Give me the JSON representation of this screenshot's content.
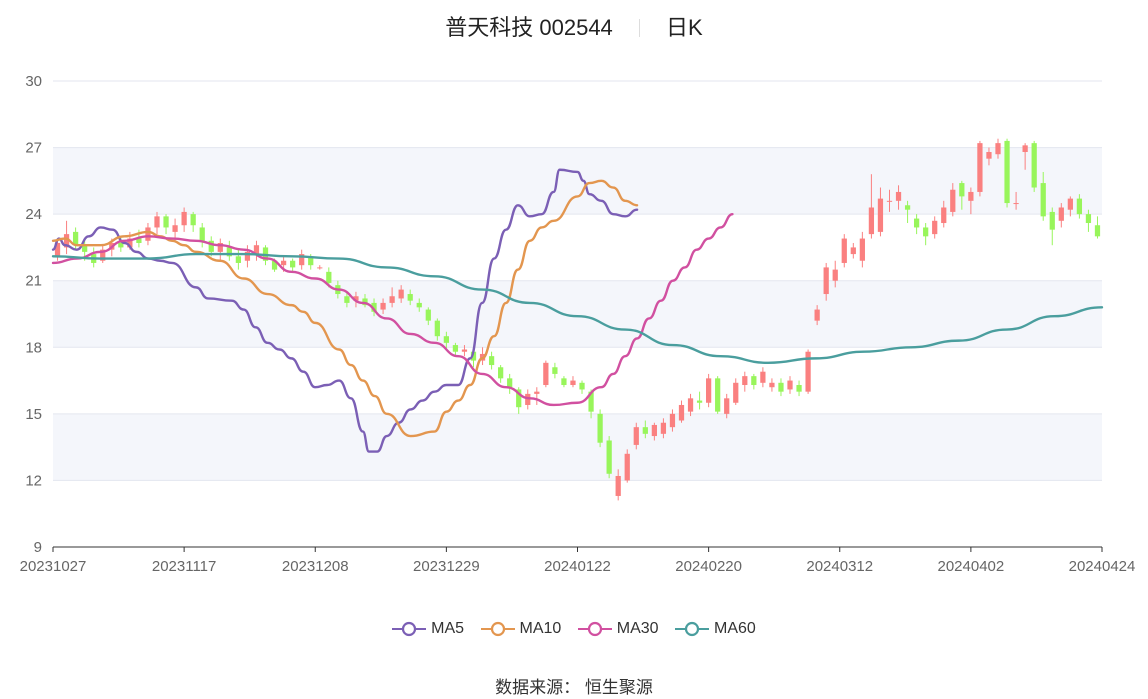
{
  "header": {
    "title": "普天科技 002544",
    "period": "日K"
  },
  "footer": {
    "source_label": "数据来源：",
    "source_name": "恒生聚源"
  },
  "colors": {
    "up": "#fa8080",
    "down": "#98f55b",
    "MA5": "#7b5fb5",
    "MA10": "#e3964f",
    "MA30": "#d150a0",
    "MA60": "#4a9e9e",
    "grid_band": "#f4f6fb",
    "grid_line": "#e3e6ef",
    "axis": "#666666"
  },
  "chart_data": {
    "type": "candlestick",
    "ylim": [
      9,
      30
    ],
    "yticks": [
      9,
      12,
      15,
      18,
      21,
      24,
      27,
      30
    ],
    "xlabels": [
      "20231027",
      "20231117",
      "20231208",
      "20231229",
      "20240122",
      "20240220",
      "20240312",
      "20240402",
      "20240424"
    ],
    "candles": [
      [
        22.1,
        22.7,
        22.9,
        21.9
      ],
      [
        22.5,
        23.1,
        23.7,
        22.2
      ],
      [
        23.2,
        22.6,
        23.4,
        22.4
      ],
      [
        22.6,
        22.3,
        22.8,
        21.9
      ],
      [
        22.2,
        21.8,
        22.5,
        21.6
      ],
      [
        21.9,
        22.4,
        22.6,
        21.8
      ],
      [
        22.4,
        22.7,
        22.9,
        22.1
      ],
      [
        22.7,
        22.5,
        23.0,
        22.3
      ],
      [
        22.5,
        22.9,
        23.2,
        22.4
      ],
      [
        22.9,
        22.7,
        23.3,
        22.5
      ],
      [
        22.8,
        23.4,
        23.6,
        22.6
      ],
      [
        23.4,
        23.9,
        24.1,
        23.1
      ],
      [
        23.9,
        23.4,
        24.0,
        23.1
      ],
      [
        23.2,
        23.5,
        23.8,
        22.8
      ],
      [
        23.5,
        24.1,
        24.3,
        23.2
      ],
      [
        24.0,
        23.5,
        24.1,
        23.2
      ],
      [
        23.4,
        22.8,
        23.6,
        22.5
      ],
      [
        22.8,
        22.3,
        23.0,
        22.1
      ],
      [
        22.3,
        22.7,
        22.9,
        21.9
      ],
      [
        22.5,
        22.1,
        22.8,
        21.9
      ],
      [
        22.1,
        21.8,
        22.4,
        21.5
      ],
      [
        21.9,
        22.3,
        22.6,
        21.6
      ],
      [
        22.2,
        22.6,
        22.8,
        21.9
      ],
      [
        22.5,
        21.9,
        22.6,
        21.7
      ],
      [
        21.9,
        21.5,
        22.0,
        21.4
      ],
      [
        21.7,
        21.9,
        22.1,
        21.4
      ],
      [
        21.9,
        21.6,
        22.0,
        21.4
      ],
      [
        21.7,
        22.2,
        22.4,
        21.5
      ],
      [
        22.1,
        21.7,
        22.2,
        21.5
      ],
      [
        21.6,
        21.6,
        21.7,
        21.5
      ],
      [
        21.4,
        20.9,
        21.6,
        20.7
      ],
      [
        20.8,
        20.4,
        21.0,
        20.2
      ],
      [
        20.3,
        20.0,
        20.5,
        19.8
      ],
      [
        20.1,
        20.3,
        20.5,
        19.8
      ],
      [
        20.2,
        19.9,
        20.4,
        19.8
      ],
      [
        20.0,
        19.6,
        20.2,
        19.4
      ],
      [
        19.7,
        20.0,
        20.2,
        19.5
      ],
      [
        20.0,
        20.3,
        20.7,
        19.8
      ],
      [
        20.2,
        20.6,
        20.8,
        20.0
      ],
      [
        20.4,
        20.1,
        20.6,
        19.9
      ],
      [
        20.0,
        19.8,
        20.2,
        19.6
      ],
      [
        19.7,
        19.2,
        19.8,
        19.0
      ],
      [
        19.2,
        18.5,
        19.3,
        18.3
      ],
      [
        18.5,
        18.2,
        18.7,
        17.9
      ],
      [
        18.1,
        17.8,
        18.2,
        17.6
      ],
      [
        17.8,
        17.9,
        18.1,
        17.6
      ],
      [
        17.8,
        17.4,
        17.9,
        17.1
      ],
      [
        17.4,
        17.7,
        18.0,
        17.2
      ],
      [
        17.6,
        17.2,
        17.8,
        17.0
      ],
      [
        17.1,
        16.6,
        17.2,
        16.4
      ],
      [
        16.6,
        16.2,
        16.8,
        15.9
      ],
      [
        16.1,
        15.3,
        16.2,
        15.0
      ],
      [
        15.4,
        15.9,
        16.1,
        15.2
      ],
      [
        15.9,
        16.0,
        16.2,
        15.4
      ],
      [
        16.3,
        17.3,
        17.4,
        16.2
      ],
      [
        17.1,
        16.8,
        17.3,
        16.6
      ],
      [
        16.6,
        16.3,
        16.7,
        16.2
      ],
      [
        16.3,
        16.5,
        16.7,
        16.2
      ],
      [
        16.4,
        16.1,
        16.5,
        15.9
      ],
      [
        16.0,
        15.1,
        16.1,
        14.8
      ],
      [
        15.0,
        13.7,
        15.2,
        13.5
      ],
      [
        13.8,
        12.3,
        14.0,
        12.1
      ],
      [
        11.3,
        12.2,
        12.5,
        11.1
      ],
      [
        12.0,
        13.2,
        13.4,
        11.9
      ],
      [
        13.6,
        14.4,
        14.6,
        13.4
      ],
      [
        14.4,
        14.1,
        14.7,
        13.9
      ],
      [
        14.0,
        14.5,
        14.6,
        13.8
      ],
      [
        14.1,
        14.6,
        14.8,
        13.9
      ],
      [
        14.4,
        15.0,
        15.2,
        14.2
      ],
      [
        14.7,
        15.4,
        15.6,
        14.6
      ],
      [
        15.1,
        15.7,
        15.9,
        14.9
      ],
      [
        15.6,
        15.5,
        16.0,
        15.2
      ],
      [
        15.5,
        16.6,
        16.8,
        15.3
      ],
      [
        16.6,
        15.1,
        16.7,
        15.0
      ],
      [
        15.0,
        15.7,
        15.9,
        14.8
      ],
      [
        15.5,
        16.4,
        16.6,
        15.4
      ],
      [
        16.3,
        16.7,
        16.9,
        16.0
      ],
      [
        16.7,
        16.3,
        16.8,
        16.1
      ],
      [
        16.4,
        16.9,
        17.1,
        16.2
      ],
      [
        16.2,
        16.4,
        16.6,
        16.0
      ],
      [
        16.4,
        16.0,
        16.6,
        15.8
      ],
      [
        16.1,
        16.5,
        16.7,
        15.9
      ],
      [
        16.3,
        16.0,
        16.5,
        15.8
      ],
      [
        16.0,
        17.8,
        17.9,
        15.9
      ],
      [
        19.2,
        19.7,
        19.9,
        19.0
      ],
      [
        20.4,
        21.6,
        21.8,
        20.1
      ],
      [
        21.0,
        21.5,
        21.9,
        20.7
      ],
      [
        21.8,
        22.9,
        23.1,
        21.6
      ],
      [
        22.2,
        22.5,
        22.7,
        22.0
      ],
      [
        21.9,
        22.9,
        23.2,
        21.6
      ],
      [
        23.1,
        24.3,
        25.8,
        22.9
      ],
      [
        23.2,
        24.7,
        25.2,
        23.0
      ],
      [
        24.6,
        24.6,
        25.1,
        24.1
      ],
      [
        24.6,
        25.0,
        25.3,
        24.2
      ],
      [
        24.4,
        24.2,
        24.6,
        23.6
      ],
      [
        23.8,
        23.4,
        24.0,
        23.1
      ],
      [
        23.4,
        23.0,
        23.6,
        22.6
      ],
      [
        23.1,
        23.7,
        23.9,
        22.9
      ],
      [
        23.6,
        24.3,
        24.6,
        23.4
      ],
      [
        24.1,
        25.1,
        25.4,
        23.9
      ],
      [
        25.4,
        24.8,
        25.5,
        24.2
      ],
      [
        24.6,
        25.0,
        25.2,
        24.0
      ],
      [
        25.0,
        27.2,
        27.3,
        24.8
      ],
      [
        26.5,
        26.8,
        27.0,
        26.2
      ],
      [
        26.7,
        27.2,
        27.4,
        26.5
      ],
      [
        27.3,
        24.5,
        27.4,
        24.3
      ],
      [
        24.5,
        24.5,
        25.0,
        24.2
      ],
      [
        26.8,
        27.1,
        27.2,
        26.0
      ],
      [
        27.2,
        25.2,
        27.3,
        25.0
      ],
      [
        25.4,
        23.9,
        25.9,
        23.7
      ],
      [
        24.1,
        23.3,
        24.3,
        22.6
      ],
      [
        23.7,
        24.3,
        24.5,
        23.4
      ],
      [
        24.2,
        24.7,
        24.8,
        23.9
      ],
      [
        24.7,
        24.0,
        24.9,
        23.8
      ],
      [
        24.0,
        23.6,
        24.2,
        23.2
      ],
      [
        23.5,
        23.0,
        23.9,
        22.9
      ]
    ],
    "series": [
      {
        "name": "MA5",
        "values": [
          [
            0,
            22.4
          ],
          [
            5,
            22.9
          ],
          [
            10,
            22.6
          ],
          [
            20,
            22.4
          ],
          [
            30,
            23.0
          ],
          [
            40,
            23.4
          ],
          [
            50,
            23.3
          ],
          [
            60,
            22.7
          ],
          [
            70,
            22.3
          ],
          [
            80,
            22.0
          ],
          [
            90,
            21.9
          ],
          [
            100,
            21.8
          ],
          [
            120,
            20.7
          ],
          [
            130,
            20.2
          ],
          [
            150,
            20.1
          ],
          [
            160,
            19.7
          ],
          [
            170,
            18.9
          ],
          [
            180,
            18.2
          ],
          [
            190,
            17.9
          ],
          [
            200,
            17.5
          ],
          [
            210,
            16.9
          ],
          [
            220,
            16.2
          ],
          [
            230,
            16.3
          ],
          [
            240,
            16.5
          ],
          [
            250,
            15.7
          ],
          [
            260,
            14.2
          ],
          [
            265,
            13.3
          ],
          [
            272,
            13.3
          ],
          [
            280,
            14.0
          ],
          [
            290,
            14.6
          ],
          [
            300,
            15.2
          ],
          [
            310,
            15.6
          ],
          [
            320,
            16.0
          ],
          [
            330,
            16.3
          ],
          [
            340,
            16.3
          ],
          [
            350,
            17.5
          ],
          [
            360,
            20.0
          ],
          [
            370,
            22.0
          ],
          [
            380,
            23.3
          ],
          [
            390,
            24.4
          ],
          [
            400,
            23.9
          ],
          [
            410,
            24.0
          ],
          [
            420,
            25.0
          ],
          [
            425,
            26.0
          ],
          [
            440,
            25.9
          ],
          [
            445,
            25.5
          ],
          [
            450,
            24.9
          ],
          [
            460,
            24.6
          ],
          [
            470,
            24.0
          ],
          [
            480,
            23.9
          ],
          [
            490,
            24.2
          ]
        ]
      },
      {
        "name": "MA10",
        "values": [
          [
            0,
            22.8
          ],
          [
            10,
            22.9
          ],
          [
            20,
            22.6
          ],
          [
            40,
            22.6
          ],
          [
            60,
            23.0
          ],
          [
            80,
            23.2
          ],
          [
            90,
            23.0
          ],
          [
            100,
            22.8
          ],
          [
            110,
            22.6
          ],
          [
            120,
            22.3
          ],
          [
            140,
            21.9
          ],
          [
            160,
            21.1
          ],
          [
            180,
            20.4
          ],
          [
            200,
            19.9
          ],
          [
            210,
            19.6
          ],
          [
            220,
            19.1
          ],
          [
            240,
            17.9
          ],
          [
            250,
            17.2
          ],
          [
            260,
            16.5
          ],
          [
            270,
            15.8
          ],
          [
            280,
            15.0
          ],
          [
            300,
            14.0
          ],
          [
            320,
            14.2
          ],
          [
            330,
            15.1
          ],
          [
            340,
            15.6
          ],
          [
            350,
            16.3
          ],
          [
            360,
            17.5
          ],
          [
            370,
            18.5
          ],
          [
            380,
            20.0
          ],
          [
            390,
            21.5
          ],
          [
            400,
            22.8
          ],
          [
            410,
            23.4
          ],
          [
            420,
            23.7
          ],
          [
            440,
            24.8
          ],
          [
            450,
            25.4
          ],
          [
            460,
            25.5
          ],
          [
            470,
            25.2
          ],
          [
            480,
            24.6
          ],
          [
            490,
            24.4
          ]
        ]
      },
      {
        "name": "MA30",
        "values": [
          [
            0,
            21.8
          ],
          [
            20,
            22.0
          ],
          [
            40,
            22.3
          ],
          [
            60,
            22.8
          ],
          [
            80,
            23.0
          ],
          [
            100,
            22.9
          ],
          [
            120,
            22.8
          ],
          [
            140,
            22.6
          ],
          [
            160,
            22.4
          ],
          [
            180,
            22.0
          ],
          [
            200,
            21.4
          ],
          [
            220,
            21.1
          ],
          [
            240,
            20.6
          ],
          [
            260,
            20.0
          ],
          [
            280,
            19.3
          ],
          [
            300,
            18.6
          ],
          [
            320,
            18.2
          ],
          [
            340,
            17.6
          ],
          [
            360,
            16.8
          ],
          [
            380,
            16.2
          ],
          [
            400,
            15.7
          ],
          [
            420,
            15.4
          ],
          [
            440,
            15.5
          ],
          [
            460,
            16.2
          ],
          [
            470,
            16.8
          ],
          [
            480,
            17.6
          ],
          [
            490,
            18.4
          ],
          [
            500,
            19.3
          ],
          [
            510,
            20.1
          ],
          [
            520,
            21.0
          ],
          [
            530,
            21.6
          ],
          [
            540,
            22.4
          ],
          [
            550,
            22.9
          ],
          [
            560,
            23.4
          ],
          [
            570,
            24.0
          ]
        ]
      },
      {
        "name": "MA60",
        "values": [
          [
            0,
            22.1
          ],
          [
            40,
            22.0
          ],
          [
            80,
            22.0
          ],
          [
            120,
            22.2
          ],
          [
            160,
            22.2
          ],
          [
            200,
            22.1
          ],
          [
            240,
            22.0
          ],
          [
            280,
            21.6
          ],
          [
            320,
            21.2
          ],
          [
            360,
            20.6
          ],
          [
            400,
            20.0
          ],
          [
            440,
            19.4
          ],
          [
            480,
            18.8
          ],
          [
            520,
            18.1
          ],
          [
            560,
            17.6
          ],
          [
            600,
            17.3
          ],
          [
            640,
            17.5
          ],
          [
            680,
            17.8
          ],
          [
            720,
            18.0
          ],
          [
            760,
            18.3
          ],
          [
            800,
            18.8
          ],
          [
            840,
            19.4
          ],
          [
            880,
            19.8
          ]
        ]
      }
    ]
  }
}
